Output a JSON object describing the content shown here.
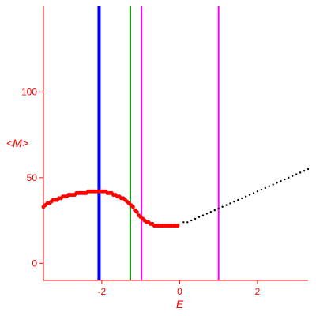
{
  "chart_data": {
    "type": "scatter",
    "xlabel": "E",
    "ylabel": "<M>",
    "xlim": [
      -3.5,
      3.3
    ],
    "ylim": [
      -10,
      150
    ],
    "x_ticks": [
      {
        "value": -2,
        "label": "-2"
      },
      {
        "value": 0,
        "label": "0"
      },
      {
        "value": 2,
        "label": "2"
      }
    ],
    "y_ticks": [
      {
        "value": 0,
        "label": "0"
      },
      {
        "value": 50,
        "label": "50"
      },
      {
        "value": 100,
        "label": "100"
      }
    ],
    "colors": {
      "axes": "#ff0000",
      "blue_line": "#0000ff",
      "green_line": "#008000",
      "magenta_line": "#ff00ff",
      "red_points": "#ff0000",
      "black_points": "#000000"
    },
    "vertical_lines": [
      {
        "x": -2.07,
        "color": "#0000ff"
      },
      {
        "x": -1.27,
        "color": "#008000"
      },
      {
        "x": -0.98,
        "color": "#ff00ff"
      },
      {
        "x": 1.0,
        "color": "#ff00ff"
      }
    ],
    "series": [
      {
        "color": "#ff0000",
        "points": [
          [
            -3.5,
            33
          ],
          [
            -3.45,
            34
          ],
          [
            -3.4,
            35
          ],
          [
            -3.35,
            35
          ],
          [
            -3.3,
            36
          ],
          [
            -3.25,
            37
          ],
          [
            -3.2,
            37
          ],
          [
            -3.15,
            37
          ],
          [
            -3.1,
            38
          ],
          [
            -3.05,
            38
          ],
          [
            -3.0,
            39
          ],
          [
            -2.95,
            39
          ],
          [
            -2.9,
            39
          ],
          [
            -2.85,
            40
          ],
          [
            -2.8,
            40
          ],
          [
            -2.75,
            40
          ],
          [
            -2.7,
            40
          ],
          [
            -2.65,
            41
          ],
          [
            -2.6,
            41
          ],
          [
            -2.55,
            41
          ],
          [
            -2.5,
            41
          ],
          [
            -2.45,
            41
          ],
          [
            -2.4,
            41
          ],
          [
            -2.35,
            42
          ],
          [
            -2.3,
            42
          ],
          [
            -2.25,
            42
          ],
          [
            -2.2,
            42
          ],
          [
            -2.15,
            42
          ],
          [
            -2.1,
            42
          ],
          [
            -2.05,
            42
          ],
          [
            -2.0,
            42
          ],
          [
            -1.95,
            42
          ],
          [
            -1.9,
            42
          ],
          [
            -1.85,
            41
          ],
          [
            -1.8,
            41
          ],
          [
            -1.75,
            41
          ],
          [
            -1.7,
            40
          ],
          [
            -1.65,
            40
          ],
          [
            -1.6,
            39
          ],
          [
            -1.55,
            39
          ],
          [
            -1.5,
            38
          ],
          [
            -1.45,
            38
          ],
          [
            -1.4,
            37
          ],
          [
            -1.35,
            36
          ],
          [
            -1.3,
            35
          ],
          [
            -1.25,
            34
          ],
          [
            -1.2,
            33
          ],
          [
            -1.15,
            31
          ],
          [
            -1.1,
            30
          ],
          [
            -1.05,
            28
          ],
          [
            -1.0,
            27
          ],
          [
            -0.95,
            26
          ],
          [
            -0.9,
            25
          ],
          [
            -0.85,
            24
          ],
          [
            -0.8,
            24
          ],
          [
            -0.75,
            23
          ],
          [
            -0.7,
            23
          ],
          [
            -0.65,
            22
          ],
          [
            -0.6,
            22
          ],
          [
            -0.55,
            22
          ],
          [
            -0.5,
            22
          ],
          [
            -0.45,
            22
          ],
          [
            -0.4,
            22
          ],
          [
            -0.35,
            22
          ],
          [
            -0.3,
            22
          ],
          [
            -0.25,
            22
          ],
          [
            -0.2,
            22
          ],
          [
            -0.15,
            22
          ],
          [
            -0.1,
            22
          ],
          [
            -0.05,
            22
          ]
        ]
      },
      {
        "color": "#000000",
        "points": [
          [
            0.1,
            24
          ],
          [
            0.2,
            24
          ],
          [
            0.3,
            25
          ],
          [
            0.4,
            26
          ],
          [
            0.5,
            27
          ],
          [
            0.6,
            28
          ],
          [
            0.7,
            29
          ],
          [
            0.8,
            30
          ],
          [
            0.9,
            31
          ],
          [
            1.0,
            32
          ],
          [
            1.1,
            33
          ],
          [
            1.2,
            34
          ],
          [
            1.3,
            35
          ],
          [
            1.4,
            36
          ],
          [
            1.5,
            37
          ],
          [
            1.6,
            38
          ],
          [
            1.7,
            39
          ],
          [
            1.8,
            40
          ],
          [
            1.9,
            41
          ],
          [
            2.0,
            42
          ],
          [
            2.1,
            43
          ],
          [
            2.2,
            44
          ],
          [
            2.3,
            45
          ],
          [
            2.4,
            46
          ],
          [
            2.5,
            47
          ],
          [
            2.6,
            48
          ],
          [
            2.7,
            49
          ],
          [
            2.8,
            50
          ],
          [
            2.9,
            51
          ],
          [
            3.0,
            52
          ],
          [
            3.1,
            53
          ],
          [
            3.2,
            54
          ],
          [
            3.3,
            55
          ]
        ]
      }
    ]
  }
}
